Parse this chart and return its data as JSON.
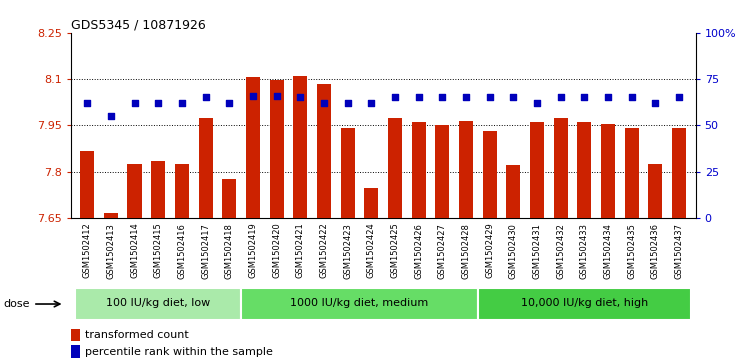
{
  "title": "GDS5345 / 10871926",
  "samples": [
    "GSM1502412",
    "GSM1502413",
    "GSM1502414",
    "GSM1502415",
    "GSM1502416",
    "GSM1502417",
    "GSM1502418",
    "GSM1502419",
    "GSM1502420",
    "GSM1502421",
    "GSM1502422",
    "GSM1502423",
    "GSM1502424",
    "GSM1502425",
    "GSM1502426",
    "GSM1502427",
    "GSM1502428",
    "GSM1502429",
    "GSM1502430",
    "GSM1502431",
    "GSM1502432",
    "GSM1502433",
    "GSM1502434",
    "GSM1502435",
    "GSM1502436",
    "GSM1502437"
  ],
  "bar_values": [
    7.865,
    7.665,
    7.825,
    7.835,
    7.825,
    7.975,
    7.775,
    8.105,
    8.095,
    8.11,
    8.085,
    7.94,
    7.745,
    7.975,
    7.96,
    7.95,
    7.965,
    7.93,
    7.82,
    7.96,
    7.975,
    7.96,
    7.955,
    7.94,
    7.825,
    7.94
  ],
  "percentile_values": [
    62,
    55,
    62,
    62,
    62,
    65,
    62,
    66,
    66,
    65,
    62,
    62,
    62,
    65,
    65,
    65,
    65,
    65,
    65,
    62,
    65,
    65,
    65,
    65,
    62,
    65
  ],
  "groups": [
    {
      "label": "100 IU/kg diet, low",
      "start": 0,
      "end": 7
    },
    {
      "label": "1000 IU/kg diet, medium",
      "start": 7,
      "end": 17
    },
    {
      "label": "10,000 IU/kg diet, high",
      "start": 17,
      "end": 26
    }
  ],
  "group_colors": [
    "#AAEAAA",
    "#66DD66",
    "#44CC44"
  ],
  "ylim_left": [
    7.65,
    8.25
  ],
  "ylim_right": [
    0,
    100
  ],
  "yticks_left": [
    7.65,
    7.8,
    7.95,
    8.1,
    8.25
  ],
  "yticks_right": [
    0,
    25,
    50,
    75,
    100
  ],
  "ytick_labels_right": [
    "0",
    "25",
    "50",
    "75",
    "100%"
  ],
  "grid_yticks": [
    7.8,
    7.95,
    8.1
  ],
  "bar_color": "#CC2200",
  "dot_color": "#0000BB",
  "bg_color": "#FFFFFF",
  "bar_bottom": 7.65,
  "legend_items": [
    {
      "label": "transformed count",
      "color": "#CC2200"
    },
    {
      "label": "percentile rank within the sample",
      "color": "#0000BB"
    }
  ]
}
